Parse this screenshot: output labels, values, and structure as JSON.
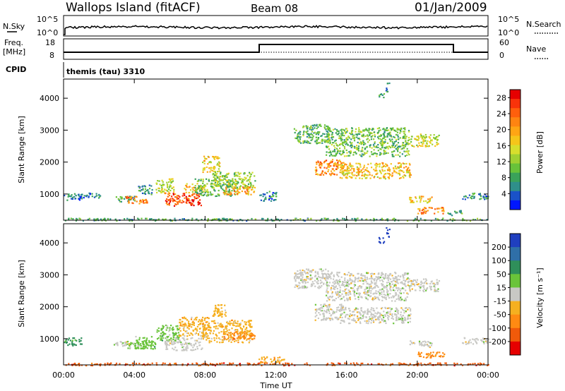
{
  "header": {
    "title": "Wallops Island (fitACF)",
    "beam": "Beam 08",
    "date": "01/Jan/2009"
  },
  "top_panels": {
    "nsky_label": "N.Sky",
    "nsearch_label": "N.Search",
    "nsky_ticks": [
      "10^5",
      "10^0"
    ],
    "nsearch_ticks": [
      "10^5",
      "10^0"
    ],
    "freq_label": "Freq.",
    "freq_unit": "[MHz]",
    "freq_ticks": [
      "18",
      "8"
    ],
    "nave_label": "Nave",
    "nave_ticks": [
      "60",
      "0"
    ],
    "cpid_label": "CPID",
    "cpid_value": "themis (tau) 3310"
  },
  "chart_data": [
    {
      "type": "heatmap",
      "name": "power",
      "ylabel": "Slant Range [km]",
      "xlabel": "",
      "x_tick_labels": [
        "00:00",
        "04:00",
        "08:00",
        "12:00",
        "16:00",
        "20:00",
        "00:00"
      ],
      "xlim_hours": [
        0,
        24
      ],
      "y_tick_labels": [
        "1000",
        "2000",
        "3000",
        "4000"
      ],
      "ylim": [
        180,
        4600
      ],
      "colorbar": {
        "label": "Power [dB]",
        "ticks": [
          "4",
          "8",
          "12",
          "16",
          "20",
          "24",
          "28"
        ],
        "range": [
          0,
          30
        ],
        "colors": [
          "#0016ff",
          "#1a52c8",
          "#2f8f8a",
          "#3aa25a",
          "#68c23a",
          "#a0d032",
          "#d7de2d",
          "#f5c51a",
          "#ffa514",
          "#ff8411",
          "#ff5f0c",
          "#f8330a",
          "#e60000"
        ]
      },
      "regions": [
        {
          "t0": 0.0,
          "t1": 1.0,
          "r0": 800,
          "r1": 1050,
          "p": 5
        },
        {
          "t0": 1.0,
          "t1": 2.2,
          "r0": 900,
          "r1": 1050,
          "p": 4
        },
        {
          "t0": 2.8,
          "t1": 4.0,
          "r0": 780,
          "r1": 950,
          "p": 7
        },
        {
          "t0": 3.5,
          "t1": 4.7,
          "r0": 700,
          "r1": 950,
          "p": 22
        },
        {
          "t0": 4.2,
          "t1": 5.0,
          "r0": 1000,
          "r1": 1300,
          "p": 6
        },
        {
          "t0": 5.2,
          "t1": 6.2,
          "r0": 1050,
          "r1": 1500,
          "p": 14
        },
        {
          "t0": 5.7,
          "t1": 7.8,
          "r0": 650,
          "r1": 1050,
          "p": 26
        },
        {
          "t0": 6.8,
          "t1": 8.0,
          "r0": 1050,
          "r1": 1350,
          "p": 18
        },
        {
          "t0": 7.4,
          "t1": 9.8,
          "r0": 950,
          "r1": 1500,
          "p": 10
        },
        {
          "t0": 7.8,
          "t1": 8.8,
          "r0": 1700,
          "r1": 2200,
          "p": 17
        },
        {
          "t0": 8.4,
          "t1": 10.8,
          "r0": 1200,
          "r1": 1700,
          "p": 12
        },
        {
          "t0": 9.0,
          "t1": 10.8,
          "r0": 1000,
          "r1": 1250,
          "p": 20
        },
        {
          "t0": 11.0,
          "t1": 12.0,
          "r0": 800,
          "r1": 1100,
          "p": 5
        },
        {
          "t0": 13.0,
          "t1": 15.0,
          "r0": 2600,
          "r1": 3200,
          "p": 9
        },
        {
          "t0": 14.2,
          "t1": 15.8,
          "r0": 1600,
          "r1": 2100,
          "p": 22
        },
        {
          "t0": 14.8,
          "t1": 19.5,
          "r0": 2200,
          "r1": 3100,
          "p": 10
        },
        {
          "t0": 15.6,
          "t1": 19.6,
          "r0": 1500,
          "r1": 2000,
          "p": 18
        },
        {
          "t0": 19.5,
          "t1": 21.2,
          "r0": 2500,
          "r1": 2900,
          "p": 14
        },
        {
          "t0": 19.5,
          "t1": 20.8,
          "r0": 750,
          "r1": 950,
          "p": 18
        },
        {
          "t0": 20.0,
          "t1": 21.5,
          "r0": 400,
          "r1": 600,
          "p": 22
        },
        {
          "t0": 21.5,
          "t1": 22.5,
          "r0": 350,
          "r1": 500,
          "p": 8
        },
        {
          "t0": 22.5,
          "t1": 24.0,
          "r0": 850,
          "r1": 1050,
          "p": 6
        },
        {
          "t0": 0.0,
          "t1": 24.0,
          "r0": 180,
          "r1": 260,
          "p": 8
        },
        {
          "t0": 17.8,
          "t1": 18.1,
          "r0": 4000,
          "r1": 4200,
          "p": 6
        },
        {
          "t0": 18.2,
          "t1": 18.4,
          "r0": 4200,
          "r1": 4500,
          "p": 5
        }
      ]
    },
    {
      "type": "heatmap",
      "name": "velocity",
      "ylabel": "Slant Range [km]",
      "xlabel": "Time UT",
      "x_tick_labels": [
        "00:00",
        "04:00",
        "08:00",
        "12:00",
        "16:00",
        "20:00",
        "00:00"
      ],
      "xlim_hours": [
        0,
        24
      ],
      "y_tick_labels": [
        "1000",
        "2000",
        "3000",
        "4000"
      ],
      "ylim": [
        180,
        4600
      ],
      "colorbar": {
        "label": "Velocity [m s⁻¹]",
        "ticks": [
          "200",
          "100",
          "50",
          "15",
          "-15",
          "-50",
          "-100",
          "-200"
        ],
        "colors": [
          "#1f3fbf",
          "#2f6fa8",
          "#2f8f5a",
          "#6ac43a",
          "#c8c8c4",
          "#f5b020",
          "#ff8a12",
          "#f05a0a",
          "#e60000"
        ]
      },
      "regions": [
        {
          "t0": 0.0,
          "t1": 1.0,
          "r0": 800,
          "r1": 1050,
          "v": 2
        },
        {
          "t0": 2.8,
          "t1": 4.0,
          "r0": 780,
          "r1": 950,
          "v": 4
        },
        {
          "t0": 3.5,
          "t1": 4.7,
          "r0": 700,
          "r1": 950,
          "v": 3
        },
        {
          "t0": 4.0,
          "t1": 5.2,
          "r0": 700,
          "r1": 1100,
          "v": 3
        },
        {
          "t0": 5.2,
          "t1": 6.5,
          "r0": 950,
          "r1": 1450,
          "v": 3
        },
        {
          "t0": 5.7,
          "t1": 7.8,
          "r0": 650,
          "r1": 1050,
          "v": 4
        },
        {
          "t0": 6.5,
          "t1": 8.2,
          "r0": 1100,
          "r1": 1700,
          "v": 5
        },
        {
          "t0": 7.8,
          "t1": 10.6,
          "r0": 900,
          "r1": 1600,
          "v": 5
        },
        {
          "t0": 8.4,
          "t1": 9.2,
          "r0": 1700,
          "r1": 2100,
          "v": 5
        },
        {
          "t0": 9.0,
          "t1": 10.8,
          "r0": 1000,
          "r1": 1250,
          "v": 6
        },
        {
          "t0": 11.0,
          "t1": 12.5,
          "r0": 250,
          "r1": 450,
          "v": 5
        },
        {
          "t0": 13.0,
          "t1": 15.0,
          "r0": 2600,
          "r1": 3200,
          "v": 4
        },
        {
          "t0": 14.2,
          "t1": 15.8,
          "r0": 1600,
          "r1": 2100,
          "v": 4
        },
        {
          "t0": 14.8,
          "t1": 19.5,
          "r0": 2200,
          "r1": 3100,
          "v": 4
        },
        {
          "t0": 15.6,
          "t1": 19.6,
          "r0": 1500,
          "r1": 2000,
          "v": 4
        },
        {
          "t0": 19.5,
          "t1": 21.2,
          "r0": 2500,
          "r1": 2900,
          "v": 4
        },
        {
          "t0": 19.5,
          "t1": 20.8,
          "r0": 750,
          "r1": 950,
          "v": 4
        },
        {
          "t0": 20.0,
          "t1": 21.5,
          "r0": 400,
          "r1": 600,
          "v": 6
        },
        {
          "t0": 22.5,
          "t1": 24.0,
          "r0": 850,
          "r1": 1050,
          "v": 4
        },
        {
          "t0": 0.0,
          "t1": 24.0,
          "r0": 180,
          "r1": 260,
          "v": 7
        },
        {
          "t0": 17.8,
          "t1": 18.1,
          "r0": 4000,
          "r1": 4200,
          "v": 0
        },
        {
          "t0": 18.2,
          "t1": 18.4,
          "r0": 4200,
          "r1": 4500,
          "v": 0
        }
      ]
    }
  ]
}
